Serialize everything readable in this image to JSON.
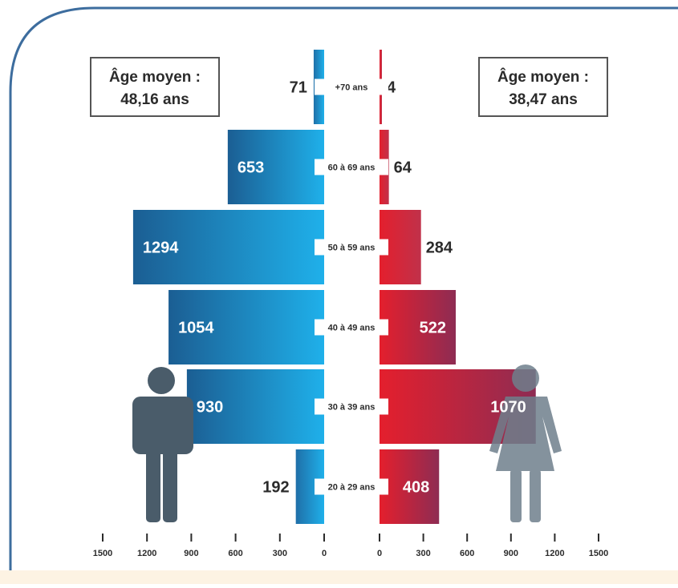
{
  "chart_data": {
    "type": "bar",
    "layout": "population-pyramid",
    "categories": [
      "+70 ans",
      "60 à 69 ans",
      "50 à 59 ans",
      "40 à 49 ans",
      "30 à 39 ans",
      "20 à 29 ans"
    ],
    "series": [
      {
        "values": [
          71,
          653,
          1294,
          1054,
          930,
          192
        ],
        "side": "left",
        "color": "#1a8fd0"
      },
      {
        "values": [
          4,
          64,
          284,
          522,
          1070,
          408
        ],
        "side": "right",
        "color": "#d9273a"
      }
    ],
    "x_ticks": [
      1500,
      1200,
      900,
      600,
      300,
      0
    ],
    "xlim": [
      0,
      1500
    ],
    "left_annotation": {
      "line1": "Âge moyen :",
      "line2": "48,16 ans"
    },
    "right_annotation": {
      "line1": "Âge moyen :",
      "line2": "38,47 ans"
    },
    "icons": [
      "man-icon",
      "woman-icon"
    ],
    "colors": {
      "frame": "#3d6d9e",
      "bottom_band": "#fdf3e3",
      "man_icon": "#4a5c6a",
      "woman_icon": "#7d8f9a",
      "dark_text": "#2b2b2b"
    }
  }
}
